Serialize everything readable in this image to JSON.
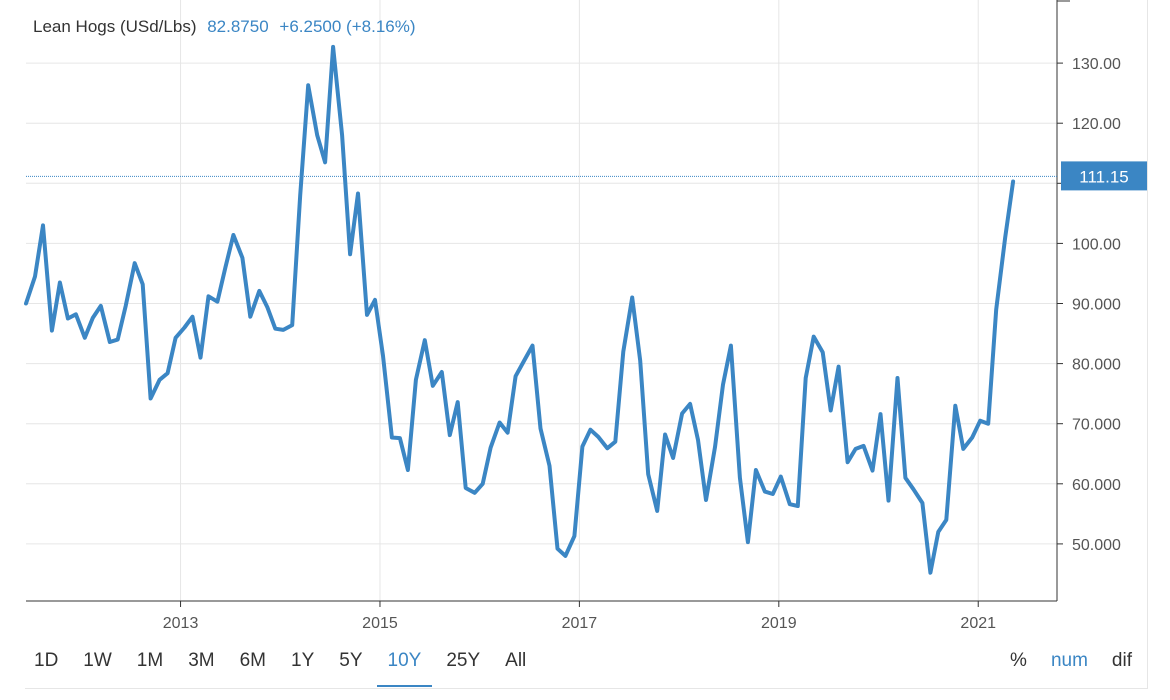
{
  "header": {
    "title": "Lean Hogs (USd/Lbs)",
    "price": "82.8750",
    "change": "+6.2500 (+8.16%)"
  },
  "colors": {
    "line": "#3b86c4",
    "grid": "#e6e6e6",
    "axis": "#333333"
  },
  "ranges": [
    "1D",
    "1W",
    "1M",
    "3M",
    "6M",
    "1Y",
    "5Y",
    "10Y",
    "25Y",
    "All"
  ],
  "active_range": "10Y",
  "modes": [
    "%",
    "num",
    "dif"
  ],
  "active_mode": "num",
  "chart_data": {
    "type": "line",
    "title": "Lean Hogs (USd/Lbs)",
    "xlabel": "",
    "ylabel": "",
    "ylim": [
      40.5,
      140.5
    ],
    "xlim": [
      2011.45,
      2021.79
    ],
    "x_ticks": [
      2013,
      2015,
      2017,
      2019,
      2021
    ],
    "x_tick_labels": [
      "2013",
      "2015",
      "2017",
      "2019",
      "2021"
    ],
    "y_ticks": [
      50,
      60,
      70,
      80,
      90,
      100,
      110,
      120,
      130
    ],
    "y_tick_labels": [
      "50.000",
      "60.000",
      "70.000",
      "80.000",
      "90.000",
      "100.00",
      "110.00",
      "120.00",
      "130.00"
    ],
    "grid": true,
    "last_value_label": "111.15",
    "last_value": 111.15,
    "series": [
      {
        "x": [
          2011.45,
          2011.54,
          2011.62,
          2011.71,
          2011.79,
          2011.87,
          2011.95,
          2012.04,
          2012.12,
          2012.2,
          2012.29,
          2012.37,
          2012.45,
          2012.54,
          2012.62,
          2012.7,
          2012.79,
          2012.87,
          2012.95,
          2013.04,
          2013.12,
          2013.2,
          2013.28,
          2013.37,
          2013.45,
          2013.53,
          2013.62,
          2013.7,
          2013.79,
          2013.87,
          2013.95,
          2014.03,
          2014.12,
          2014.2,
          2014.28,
          2014.37,
          2014.45,
          2014.53,
          2014.62,
          2014.7,
          2014.78,
          2014.87,
          2014.95,
          2015.03,
          2015.12,
          2015.2,
          2015.28,
          2015.36,
          2015.45,
          2015.53,
          2015.62,
          2015.7,
          2015.78,
          2015.86,
          2015.95,
          2016.03,
          2016.11,
          2016.2,
          2016.28,
          2016.36,
          2016.45,
          2016.53,
          2016.61,
          2016.7,
          2016.78,
          2016.86,
          2016.95,
          2017.03,
          2017.11,
          2017.19,
          2017.28,
          2017.36,
          2017.44,
          2017.53,
          2017.61,
          2017.69,
          2017.78,
          2017.86,
          2017.94,
          2018.03,
          2018.11,
          2018.19,
          2018.27,
          2018.36,
          2018.44,
          2018.52,
          2018.61,
          2018.69,
          2018.77,
          2018.86,
          2018.94,
          2019.02,
          2019.11,
          2019.19,
          2019.27,
          2019.35,
          2019.44,
          2019.52,
          2019.6,
          2019.69,
          2019.77,
          2019.85,
          2019.94,
          2020.02,
          2020.1,
          2020.19,
          2020.27,
          2020.35,
          2020.44,
          2020.52,
          2020.6,
          2020.68,
          2020.77,
          2020.85,
          2020.94,
          2021.02,
          2021.1,
          2021.18,
          2021.27,
          2021.35
        ],
        "values": [
          90.0,
          94.5,
          103.0,
          85.5,
          93.5,
          87.5,
          88.2,
          84.3,
          87.6,
          89.6,
          83.6,
          84.0,
          89.6,
          96.7,
          93.2,
          74.2,
          77.3,
          78.4,
          84.3,
          86.0,
          87.8,
          81.0,
          91.2,
          90.3,
          96.0,
          101.4,
          97.6,
          87.8,
          92.1,
          89.4,
          85.8,
          85.6,
          86.4,
          108.0,
          126.3,
          118.0,
          113.5,
          132.7,
          118.0,
          98.2,
          108.3,
          88.1,
          90.6,
          81.3,
          67.7,
          67.6,
          62.3,
          77.3,
          83.9,
          76.3,
          78.6,
          68.1,
          73.6,
          59.3,
          58.5,
          60.0,
          66.0,
          70.2,
          68.5,
          77.9,
          80.6,
          83.0,
          69.2,
          63.0,
          49.2,
          48.0,
          51.3,
          66.2,
          69.0,
          67.8,
          65.9,
          67.0,
          82.0,
          91.0,
          80.5,
          61.6,
          55.5,
          68.2,
          64.3,
          71.7,
          73.3,
          67.3,
          57.3,
          66.1,
          76.5,
          83.0,
          61.0,
          50.3,
          62.3,
          58.7,
          58.3,
          61.2,
          56.6,
          56.3,
          77.6,
          84.5,
          81.9,
          72.2,
          79.5,
          63.6,
          65.8,
          66.3,
          62.2,
          71.6,
          57.2,
          77.6,
          61.0,
          59.1,
          56.8,
          45.2,
          52.0,
          54.0,
          73.0,
          65.8,
          67.7,
          70.5,
          70.0,
          89.0,
          101.0,
          110.3
        ]
      }
    ]
  }
}
